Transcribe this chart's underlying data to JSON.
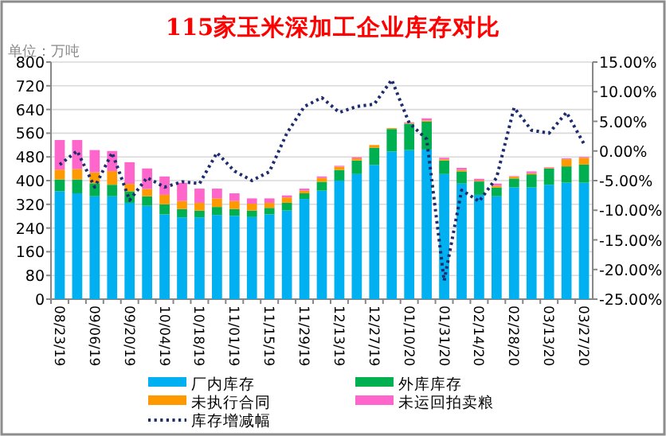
{
  "chart_data": {
    "type": "bar",
    "title": "115家玉米深加工企业库存对比",
    "annotations": [
      "单位：万吨"
    ],
    "categories": [
      "08/23/19",
      null,
      "09/06/19",
      null,
      "09/20/19",
      null,
      "10/04/19",
      null,
      "10/18/19",
      null,
      "11/01/19",
      null,
      "11/15/19",
      null,
      "11/29/19",
      null,
      "12/13/19",
      null,
      "12/27/19",
      null,
      "01/10/20",
      null,
      "01/31/20",
      null,
      "02/14/20",
      null,
      "02/28/20",
      null,
      "03/13/20",
      null,
      "03/27/20"
    ],
    "stacked": true,
    "grid": "y",
    "legend": "bottom",
    "ylim": [
      0,
      800
    ],
    "yticks": [
      0,
      80,
      160,
      240,
      320,
      400,
      480,
      560,
      640,
      720,
      800
    ],
    "y2lim": [
      -25,
      15
    ],
    "y2ticks": [
      {
        "value": -25,
        "label": "-25.00%"
      },
      {
        "value": -20,
        "label": "-20.00%"
      },
      {
        "value": -15,
        "label": "-15.00%"
      },
      {
        "value": -10,
        "label": "-10.00%"
      },
      {
        "value": -5,
        "label": "-5.00%"
      },
      {
        "value": 0,
        "label": "0.00%"
      },
      {
        "value": 5,
        "label": "5.00%"
      },
      {
        "value": 10,
        "label": "10.00%"
      },
      {
        "value": 15,
        "label": "15.00%"
      }
    ],
    "series": [
      {
        "name": "厂内库存",
        "color": "#00b0f0",
        "values": [
          364,
          357,
          347,
          347,
          325,
          315,
          286,
          276,
          276,
          284,
          281,
          277,
          286,
          299,
          338,
          366,
          400,
          422,
          453,
          498,
          503,
          505,
          422,
          390,
          352,
          347,
          377,
          377,
          386,
          393,
          393
        ]
      },
      {
        "name": "外库库存",
        "color": "#00b050",
        "values": [
          40,
          47,
          44,
          39,
          39,
          32,
          34,
          28,
          23,
          27,
          23,
          22,
          22,
          26,
          19,
          30,
          36,
          46,
          58,
          76,
          89,
          94,
          46,
          41,
          45,
          30,
          30,
          44,
          55,
          55,
          61
        ]
      },
      {
        "name": "未执行合同",
        "color": "#ff9900",
        "values": [
          33,
          35,
          37,
          46,
          25,
          25,
          32,
          27,
          26,
          29,
          27,
          23,
          17,
          18,
          9,
          13,
          11,
          7,
          9,
          3,
          2,
          4,
          4,
          5,
          3,
          6,
          6,
          4,
          2,
          24,
          23
        ]
      },
      {
        "name": "未运回拍卖粮",
        "color": "#ff66cc",
        "values": [
          100,
          98,
          75,
          68,
          73,
          69,
          62,
          62,
          48,
          33,
          26,
          18,
          15,
          7,
          7,
          5,
          3,
          4,
          null,
          0,
          3,
          7,
          5,
          7,
          6,
          7,
          2,
          6,
          2,
          3,
          3
        ]
      },
      {
        "name": "库存增减幅",
        "type": "line",
        "axis": "y2",
        "line_style": "dotted",
        "color": "#1f2d6e",
        "values": [
          -2.3,
          0.0,
          -6.1,
          -0.3,
          -8.3,
          -4.5,
          -6.1,
          -5.2,
          -5.5,
          -0.3,
          -3.4,
          -5.0,
          -3.5,
          3.0,
          7.5,
          9.0,
          6.5,
          7.5,
          7.9,
          12.0,
          4.7,
          2.0,
          -21.9,
          -6.6,
          -8.5,
          -4.5,
          7.3,
          3.5,
          3.0,
          6.5,
          1.2
        ]
      }
    ]
  }
}
